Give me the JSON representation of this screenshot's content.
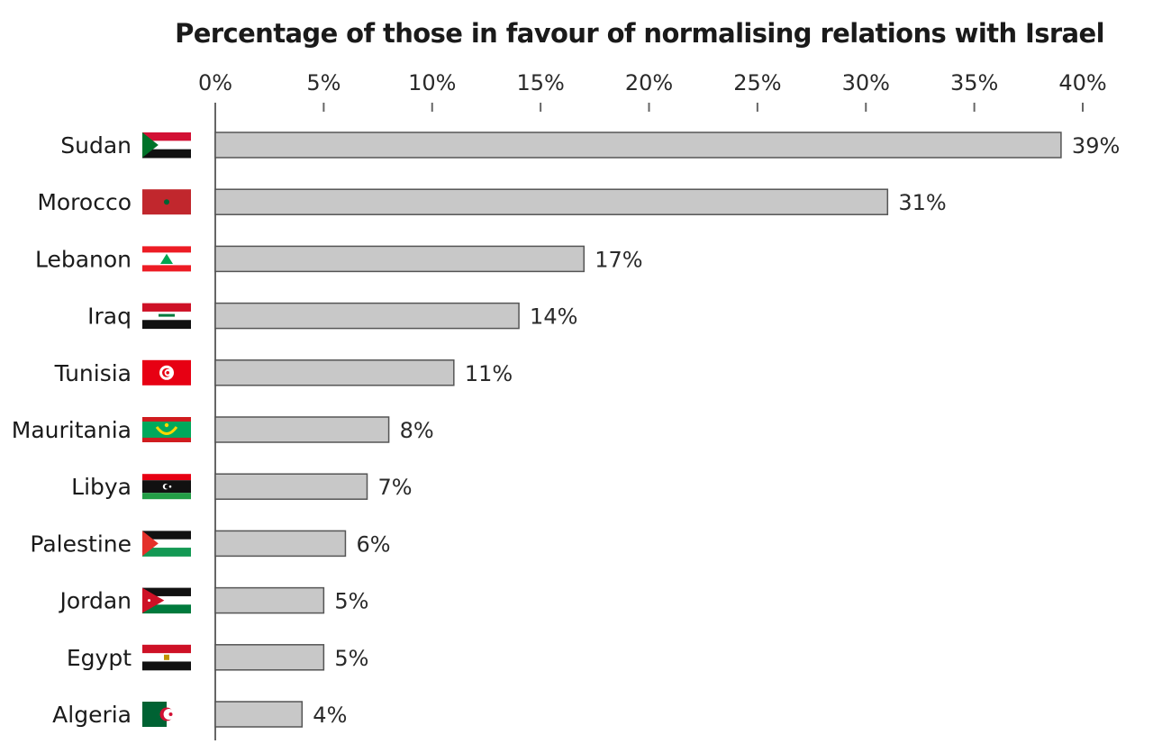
{
  "chart_data": {
    "type": "bar",
    "orientation": "horizontal",
    "title": "Percentage of those in favour of normalising relations with Israel",
    "categories": [
      "Sudan",
      "Morocco",
      "Lebanon",
      "Iraq",
      "Tunisia",
      "Mauritania",
      "Libya",
      "Palestine",
      "Jordan",
      "Egypt",
      "Algeria"
    ],
    "values": [
      39,
      31,
      17,
      14,
      11,
      8,
      7,
      6,
      5,
      5,
      4
    ],
    "value_labels": [
      "39%",
      "31%",
      "17%",
      "14%",
      "11%",
      "8%",
      "7%",
      "6%",
      "5%",
      "5%",
      "4%"
    ],
    "flags": [
      "sudan-flag-icon",
      "morocco-flag-icon",
      "lebanon-flag-icon",
      "iraq-flag-icon",
      "tunisia-flag-icon",
      "mauritania-flag-icon",
      "libya-flag-icon",
      "palestine-flag-icon",
      "jordan-flag-icon",
      "egypt-flag-icon",
      "algeria-flag-icon"
    ],
    "xlim": [
      0,
      40
    ],
    "xticks": [
      0,
      5,
      10,
      15,
      20,
      25,
      30,
      35,
      40
    ],
    "xtick_labels": [
      "0%",
      "5%",
      "10%",
      "15%",
      "20%",
      "25%",
      "30%",
      "35%",
      "40%"
    ],
    "axis_position": "top",
    "grid": false,
    "legend": "none",
    "colors": {
      "bar_fill": "#c8c8c8",
      "bar_stroke": "#555555",
      "axis": "#666666",
      "text": "#1a1a1a"
    }
  }
}
